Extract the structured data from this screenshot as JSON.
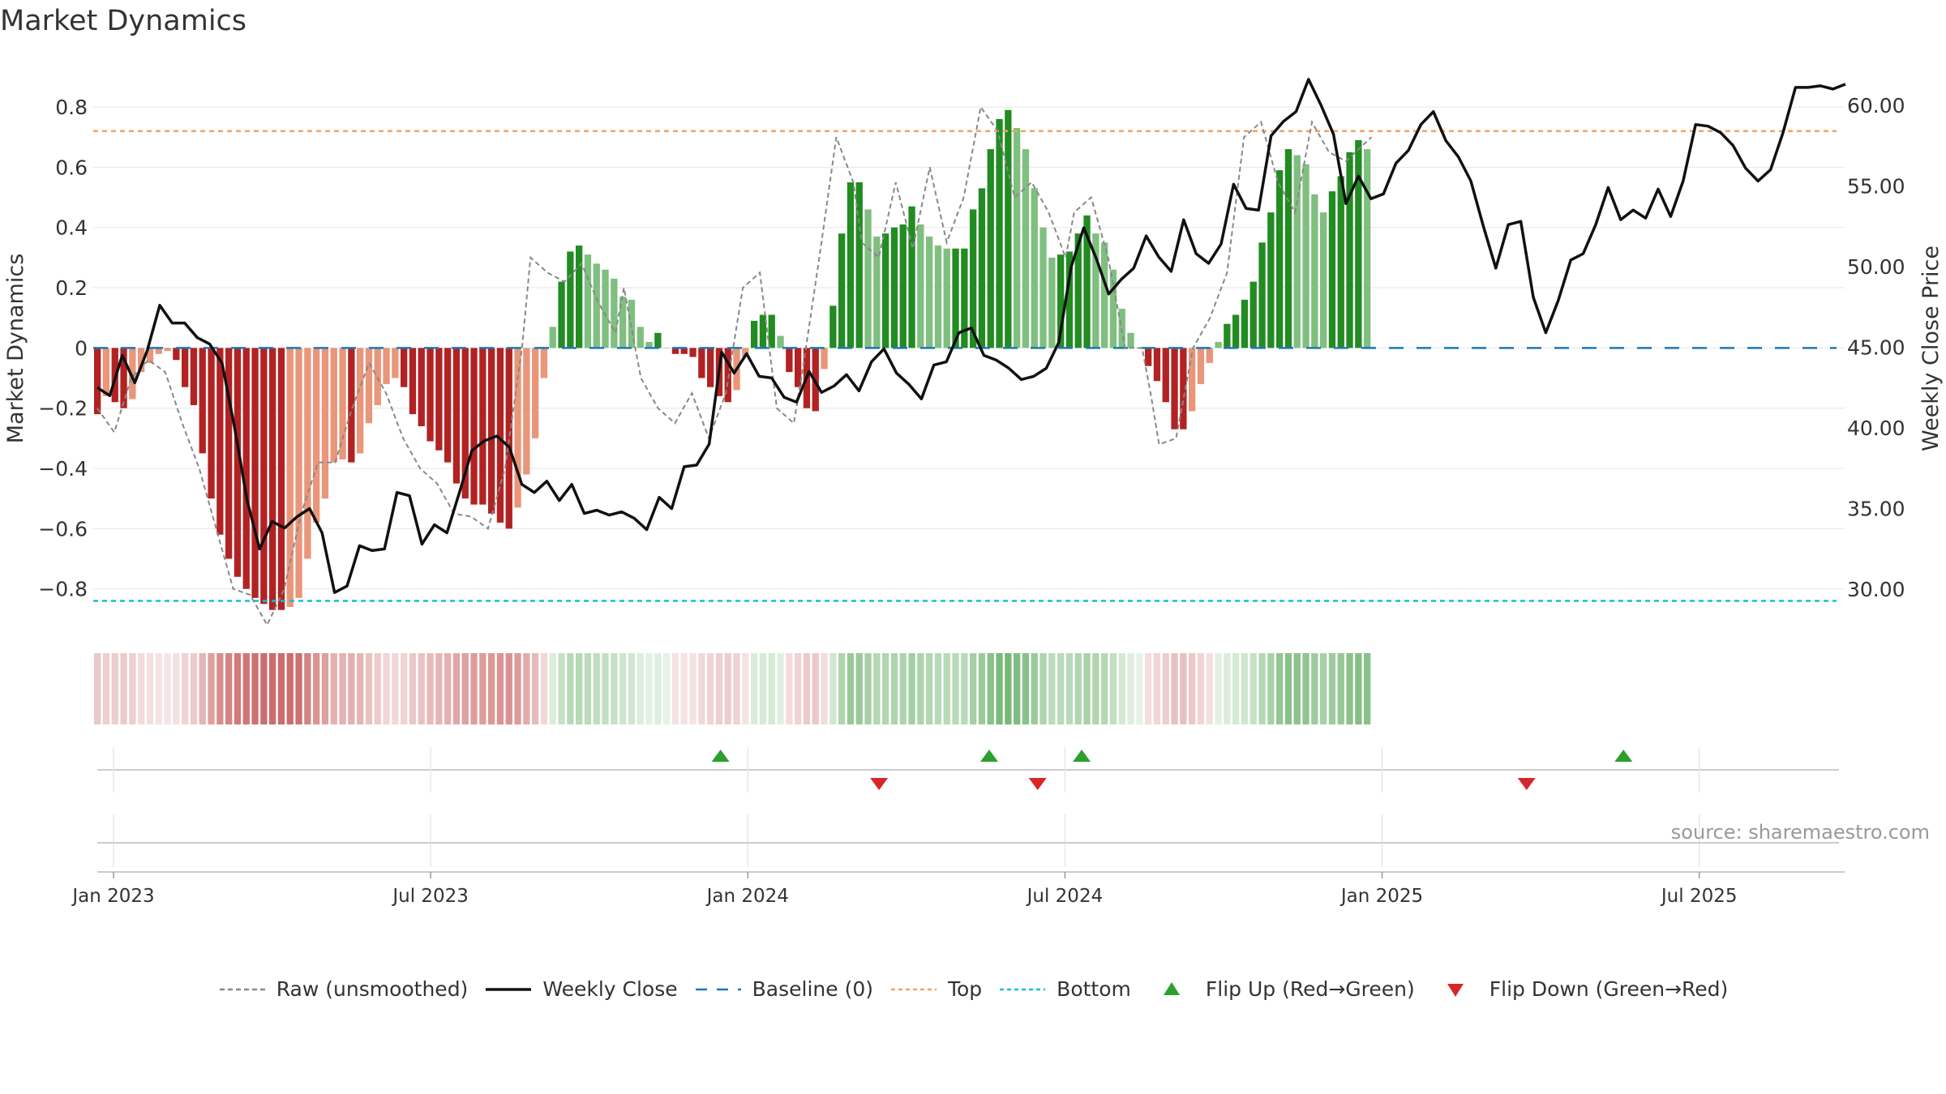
{
  "chart_data": {
    "type": "bar",
    "title": "Market Dynamics",
    "ylabel_left": "Market Dynamics",
    "ylabel_right": "Weekly Close Price",
    "ylim_left": [
      -0.93,
      0.94
    ],
    "ylim_right": [
      27.6,
      62.5
    ],
    "left_ticks": [
      "0.8",
      "0.6",
      "0.4",
      "0.2",
      "0",
      "−0.2",
      "−0.4",
      "−0.6",
      "−0.8"
    ],
    "left_tick_values": [
      0.8,
      0.6,
      0.4,
      0.2,
      0,
      -0.2,
      -0.4,
      -0.6,
      -0.8
    ],
    "right_ticks": [
      "60.00",
      "55.00",
      "50.00",
      "45.00",
      "40.00",
      "35.00",
      "30.00"
    ],
    "right_tick_values": [
      60,
      55,
      50,
      45,
      40,
      35,
      30
    ],
    "x_ticks": [
      "Jan 2023",
      "Jul 2023",
      "Jan 2024",
      "Jul 2024",
      "Jan 2025",
      "Jul 2025"
    ],
    "x_tick_weeks": [
      0.6,
      36.6,
      72.6,
      108.6,
      144.6,
      180.6
    ],
    "top_line": 0.72,
    "bottom_line": -0.84,
    "baseline": 0,
    "weeks": 200,
    "bar_anchors": [
      [
        0,
        -0.22
      ],
      [
        1,
        -0.16
      ],
      [
        2,
        -0.18
      ],
      [
        3,
        -0.2
      ],
      [
        4,
        -0.17
      ],
      [
        5,
        -0.08
      ],
      [
        6,
        -0.05
      ],
      [
        7,
        -0.02
      ],
      [
        8,
        -0.01
      ],
      [
        9,
        -0.04
      ],
      [
        10,
        -0.13
      ],
      [
        11,
        -0.19
      ],
      [
        12,
        -0.35
      ],
      [
        13,
        -0.5
      ],
      [
        14,
        -0.62
      ],
      [
        15,
        -0.7
      ],
      [
        16,
        -0.76
      ],
      [
        17,
        -0.8
      ],
      [
        18,
        -0.83
      ],
      [
        19,
        -0.85
      ],
      [
        20,
        -0.87
      ],
      [
        21,
        -0.87
      ],
      [
        22,
        -0.86
      ],
      [
        23,
        -0.83
      ],
      [
        24,
        -0.7
      ],
      [
        25,
        -0.58
      ],
      [
        26,
        -0.5
      ],
      [
        27,
        -0.38
      ],
      [
        28,
        -0.37
      ],
      [
        29,
        -0.38
      ],
      [
        30,
        -0.35
      ],
      [
        31,
        -0.25
      ],
      [
        32,
        -0.19
      ],
      [
        33,
        -0.12
      ],
      [
        34,
        -0.1
      ],
      [
        35,
        -0.13
      ],
      [
        36,
        -0.22
      ],
      [
        37,
        -0.26
      ],
      [
        38,
        -0.31
      ],
      [
        39,
        -0.34
      ],
      [
        40,
        -0.38
      ],
      [
        41,
        -0.45
      ],
      [
        42,
        -0.5
      ],
      [
        43,
        -0.52
      ],
      [
        44,
        -0.52
      ],
      [
        45,
        -0.55
      ],
      [
        46,
        -0.58
      ],
      [
        47,
        -0.6
      ],
      [
        48,
        -0.53
      ],
      [
        49,
        -0.42
      ],
      [
        50,
        -0.3
      ],
      [
        51,
        -0.1
      ],
      [
        52,
        0.07
      ],
      [
        53,
        0.22
      ],
      [
        54,
        0.32
      ],
      [
        55,
        0.34
      ],
      [
        56,
        0.31
      ],
      [
        57,
        0.28
      ],
      [
        58,
        0.26
      ],
      [
        59,
        0.23
      ],
      [
        60,
        0.17
      ],
      [
        61,
        0.16
      ],
      [
        62,
        0.07
      ],
      [
        63,
        0.02
      ],
      [
        64,
        0.05
      ],
      [
        65,
        0.0
      ],
      [
        66,
        -0.02
      ],
      [
        67,
        -0.02
      ],
      [
        68,
        -0.03
      ],
      [
        69,
        -0.1
      ],
      [
        70,
        -0.13
      ],
      [
        71,
        -0.16
      ],
      [
        72,
        -0.18
      ],
      [
        73,
        -0.14
      ],
      [
        74,
        -0.03
      ],
      [
        75,
        0.09
      ],
      [
        76,
        0.11
      ],
      [
        77,
        0.11
      ],
      [
        78,
        0.04
      ],
      [
        79,
        -0.08
      ],
      [
        80,
        -0.13
      ],
      [
        81,
        -0.2
      ],
      [
        82,
        -0.21
      ],
      [
        83,
        -0.07
      ],
      [
        84,
        0.14
      ],
      [
        85,
        0.38
      ],
      [
        86,
        0.55
      ],
      [
        87,
        0.55
      ],
      [
        88,
        0.46
      ],
      [
        89,
        0.37
      ],
      [
        90,
        0.38
      ],
      [
        91,
        0.4
      ],
      [
        92,
        0.41
      ],
      [
        93,
        0.47
      ],
      [
        94,
        0.41
      ],
      [
        95,
        0.37
      ],
      [
        96,
        0.34
      ],
      [
        97,
        0.33
      ],
      [
        98,
        0.33
      ],
      [
        99,
        0.33
      ],
      [
        100,
        0.46
      ],
      [
        101,
        0.53
      ],
      [
        102,
        0.66
      ],
      [
        103,
        0.76
      ],
      [
        104,
        0.79
      ],
      [
        105,
        0.73
      ],
      [
        106,
        0.66
      ],
      [
        107,
        0.53
      ],
      [
        108,
        0.4
      ],
      [
        109,
        0.3
      ],
      [
        110,
        0.31
      ],
      [
        111,
        0.32
      ],
      [
        112,
        0.38
      ],
      [
        113,
        0.44
      ],
      [
        114,
        0.38
      ],
      [
        115,
        0.35
      ],
      [
        116,
        0.26
      ],
      [
        117,
        0.13
      ],
      [
        118,
        0.05
      ],
      [
        119,
        0.0
      ],
      [
        120,
        -0.06
      ],
      [
        121,
        -0.11
      ],
      [
        122,
        -0.18
      ],
      [
        123,
        -0.27
      ],
      [
        124,
        -0.27
      ],
      [
        125,
        -0.21
      ],
      [
        126,
        -0.12
      ],
      [
        127,
        -0.05
      ],
      [
        128,
        0.02
      ],
      [
        129,
        0.08
      ],
      [
        130,
        0.11
      ],
      [
        131,
        0.16
      ],
      [
        132,
        0.22
      ],
      [
        133,
        0.35
      ],
      [
        134,
        0.45
      ],
      [
        135,
        0.59
      ],
      [
        136,
        0.66
      ],
      [
        137,
        0.64
      ],
      [
        138,
        0.61
      ],
      [
        139,
        0.51
      ],
      [
        140,
        0.45
      ],
      [
        141,
        0.52
      ],
      [
        142,
        0.57
      ],
      [
        143,
        0.65
      ],
      [
        144,
        0.69
      ],
      [
        145,
        0.66
      ]
    ],
    "close_anchors": [
      [
        0,
        42.5
      ],
      [
        1,
        42
      ],
      [
        2,
        44.5
      ],
      [
        3,
        42.8
      ],
      [
        4,
        44.8
      ],
      [
        5,
        47.6
      ],
      [
        6,
        46.5
      ],
      [
        7,
        46.5
      ],
      [
        8,
        45.6
      ],
      [
        9,
        45.2
      ],
      [
        10,
        44
      ],
      [
        11,
        40
      ],
      [
        12,
        35.5
      ],
      [
        13,
        32.5
      ],
      [
        14,
        34.2
      ],
      [
        15,
        33.8
      ],
      [
        16,
        34.5
      ],
      [
        17,
        35
      ],
      [
        18,
        33.5
      ],
      [
        19,
        29.8
      ],
      [
        20,
        30.2
      ],
      [
        21,
        32.7
      ],
      [
        22,
        32.4
      ],
      [
        23,
        32.5
      ],
      [
        24,
        36
      ],
      [
        25,
        35.8
      ],
      [
        26,
        32.8
      ],
      [
        27,
        34
      ],
      [
        28,
        33.5
      ],
      [
        29,
        36
      ],
      [
        30,
        38.6
      ],
      [
        31,
        39.2
      ],
      [
        32,
        39.5
      ],
      [
        33,
        38.8
      ],
      [
        34,
        36.5
      ],
      [
        35,
        36
      ],
      [
        36,
        36.7
      ],
      [
        37,
        35.5
      ],
      [
        38,
        36.5
      ],
      [
        39,
        34.7
      ],
      [
        40,
        34.9
      ],
      [
        41,
        34.6
      ],
      [
        42,
        34.8
      ],
      [
        43,
        34.4
      ],
      [
        44,
        33.7
      ],
      [
        45,
        35.7
      ],
      [
        46,
        35
      ],
      [
        47,
        37.6
      ],
      [
        48,
        37.7
      ],
      [
        49,
        39
      ],
      [
        50,
        44.7
      ],
      [
        51,
        43.4
      ],
      [
        52,
        44.6
      ],
      [
        53,
        43.2
      ],
      [
        54,
        43.1
      ],
      [
        55,
        41.9
      ],
      [
        56,
        41.6
      ],
      [
        57,
        43.5
      ],
      [
        58,
        42.2
      ],
      [
        59,
        42.6
      ],
      [
        60,
        43.3
      ],
      [
        61,
        42.3
      ],
      [
        62,
        44.1
      ],
      [
        63,
        44.9
      ],
      [
        64,
        43.4
      ],
      [
        65,
        42.7
      ],
      [
        66,
        41.8
      ],
      [
        67,
        43.9
      ],
      [
        68,
        44.1
      ],
      [
        69,
        45.9
      ],
      [
        70,
        46.2
      ],
      [
        71,
        44.5
      ],
      [
        72,
        44.2
      ],
      [
        73,
        43.7
      ],
      [
        74,
        43
      ],
      [
        75,
        43.2
      ],
      [
        76,
        43.7
      ],
      [
        77,
        45.3
      ],
      [
        78,
        50
      ],
      [
        79,
        52.4
      ],
      [
        80,
        50.5
      ],
      [
        81,
        48.3
      ],
      [
        82,
        49.2
      ],
      [
        83,
        49.9
      ],
      [
        84,
        51.9
      ],
      [
        85,
        50.6
      ],
      [
        86,
        49.7
      ],
      [
        87,
        52.9
      ],
      [
        88,
        50.8
      ],
      [
        89,
        50.2
      ],
      [
        90,
        51.4
      ],
      [
        91,
        55.1
      ],
      [
        92,
        53.6
      ],
      [
        93,
        53.5
      ],
      [
        94,
        58.1
      ],
      [
        95,
        59
      ],
      [
        96,
        59.6
      ],
      [
        97,
        61.6
      ],
      [
        98,
        60
      ],
      [
        99,
        58.2
      ],
      [
        100,
        53.9
      ],
      [
        101,
        55.6
      ],
      [
        102,
        54.2
      ],
      [
        103,
        54.5
      ],
      [
        104,
        56.4
      ],
      [
        105,
        57.2
      ],
      [
        106,
        58.8
      ],
      [
        107,
        59.6
      ],
      [
        108,
        57.8
      ],
      [
        109,
        56.8
      ],
      [
        110,
        55.3
      ],
      [
        111,
        52.5
      ],
      [
        112,
        49.9
      ],
      [
        113,
        52.6
      ],
      [
        114,
        52.8
      ],
      [
        115,
        48.1
      ],
      [
        116,
        45.9
      ],
      [
        117,
        47.9
      ],
      [
        118,
        50.4
      ],
      [
        119,
        50.8
      ],
      [
        120,
        52.6
      ],
      [
        121,
        54.9
      ],
      [
        122,
        52.9
      ],
      [
        123,
        53.5
      ],
      [
        124,
        53
      ],
      [
        125,
        54.8
      ],
      [
        126,
        53.1
      ],
      [
        127,
        55.3
      ],
      [
        128,
        58.8
      ],
      [
        129,
        58.7
      ],
      [
        130,
        58.3
      ],
      [
        131,
        57.5
      ],
      [
        132,
        56.1
      ],
      [
        133,
        55.3
      ],
      [
        134,
        56
      ],
      [
        135,
        58.3
      ],
      [
        136,
        61.1
      ],
      [
        137,
        61.1
      ],
      [
        138,
        61.2
      ],
      [
        139,
        61
      ],
      [
        140,
        61.3
      ]
    ],
    "raw_anchors": [
      [
        0,
        -0.2
      ],
      [
        2,
        -0.28
      ],
      [
        4,
        -0.1
      ],
      [
        6,
        -0.04
      ],
      [
        8,
        -0.08
      ],
      [
        10,
        -0.25
      ],
      [
        12,
        -0.4
      ],
      [
        14,
        -0.6
      ],
      [
        16,
        -0.8
      ],
      [
        18,
        -0.82
      ],
      [
        20,
        -0.92
      ],
      [
        22,
        -0.8
      ],
      [
        24,
        -0.55
      ],
      [
        26,
        -0.38
      ],
      [
        28,
        -0.38
      ],
      [
        30,
        -0.2
      ],
      [
        32,
        -0.05
      ],
      [
        34,
        -0.15
      ],
      [
        36,
        -0.3
      ],
      [
        38,
        -0.4
      ],
      [
        40,
        -0.45
      ],
      [
        42,
        -0.55
      ],
      [
        44,
        -0.56
      ],
      [
        46,
        -0.6
      ],
      [
        48,
        -0.4
      ],
      [
        50,
        0.0
      ],
      [
        51,
        0.3
      ],
      [
        53,
        0.25
      ],
      [
        55,
        0.22
      ],
      [
        57,
        0.28
      ],
      [
        59,
        0.15
      ],
      [
        61,
        0.05
      ],
      [
        62,
        0.2
      ],
      [
        64,
        -0.1
      ],
      [
        66,
        -0.2
      ],
      [
        68,
        -0.25
      ],
      [
        70,
        -0.15
      ],
      [
        72,
        -0.3
      ],
      [
        74,
        -0.15
      ],
      [
        76,
        0.2
      ],
      [
        78,
        0.25
      ],
      [
        80,
        -0.2
      ],
      [
        82,
        -0.25
      ],
      [
        83,
        -0.08
      ],
      [
        85,
        0.3
      ],
      [
        87,
        0.7
      ],
      [
        89,
        0.55
      ],
      [
        90,
        0.35
      ],
      [
        92,
        0.3
      ],
      [
        94,
        0.55
      ],
      [
        96,
        0.33
      ],
      [
        98,
        0.6
      ],
      [
        100,
        0.35
      ],
      [
        102,
        0.5
      ],
      [
        104,
        0.8
      ],
      [
        106,
        0.72
      ],
      [
        108,
        0.5
      ],
      [
        110,
        0.55
      ],
      [
        112,
        0.45
      ],
      [
        114,
        0.3
      ],
      [
        115,
        0.45
      ],
      [
        117,
        0.5
      ],
      [
        119,
        0.3
      ],
      [
        121,
        0.0
      ],
      [
        123,
        0.0
      ],
      [
        124,
        -0.15
      ],
      [
        125,
        -0.32
      ],
      [
        127,
        -0.3
      ],
      [
        129,
        0.0
      ],
      [
        131,
        0.1
      ],
      [
        133,
        0.25
      ],
      [
        135,
        0.7
      ],
      [
        137,
        0.75
      ],
      [
        139,
        0.55
      ],
      [
        141,
        0.45
      ],
      [
        143,
        0.75
      ],
      [
        145,
        0.65
      ],
      [
        147,
        0.62
      ],
      [
        150,
        0.7
      ]
    ],
    "flip_up_weeks": [
      69.5,
      100,
      110.5,
      172
    ],
    "flip_down_weeks": [
      87.5,
      105.5,
      161
    ],
    "colors": {
      "dark_red": "#b22222",
      "light_red": "#e9967a",
      "dark_green": "#228b22",
      "light_green": "#7fbf7f",
      "top": "#f4a261",
      "bottom": "#17becf",
      "baseline": "#1f77b4",
      "flip_up": "#2ca02c",
      "flip_down": "#d62728",
      "close": "#111111",
      "raw": "#888888"
    },
    "legend": [
      {
        "key": "raw",
        "label": "Raw (unsmoothed)"
      },
      {
        "key": "close",
        "label": "Weekly Close"
      },
      {
        "key": "baseline",
        "label": "Baseline (0)"
      },
      {
        "key": "top",
        "label": "Top"
      },
      {
        "key": "bottom",
        "label": "Bottom"
      },
      {
        "key": "flip_up",
        "label": "Flip Up (Red→Green)"
      },
      {
        "key": "flip_down",
        "label": "Flip Down (Green→Red)"
      }
    ],
    "source": "source: sharemaestro.com"
  }
}
